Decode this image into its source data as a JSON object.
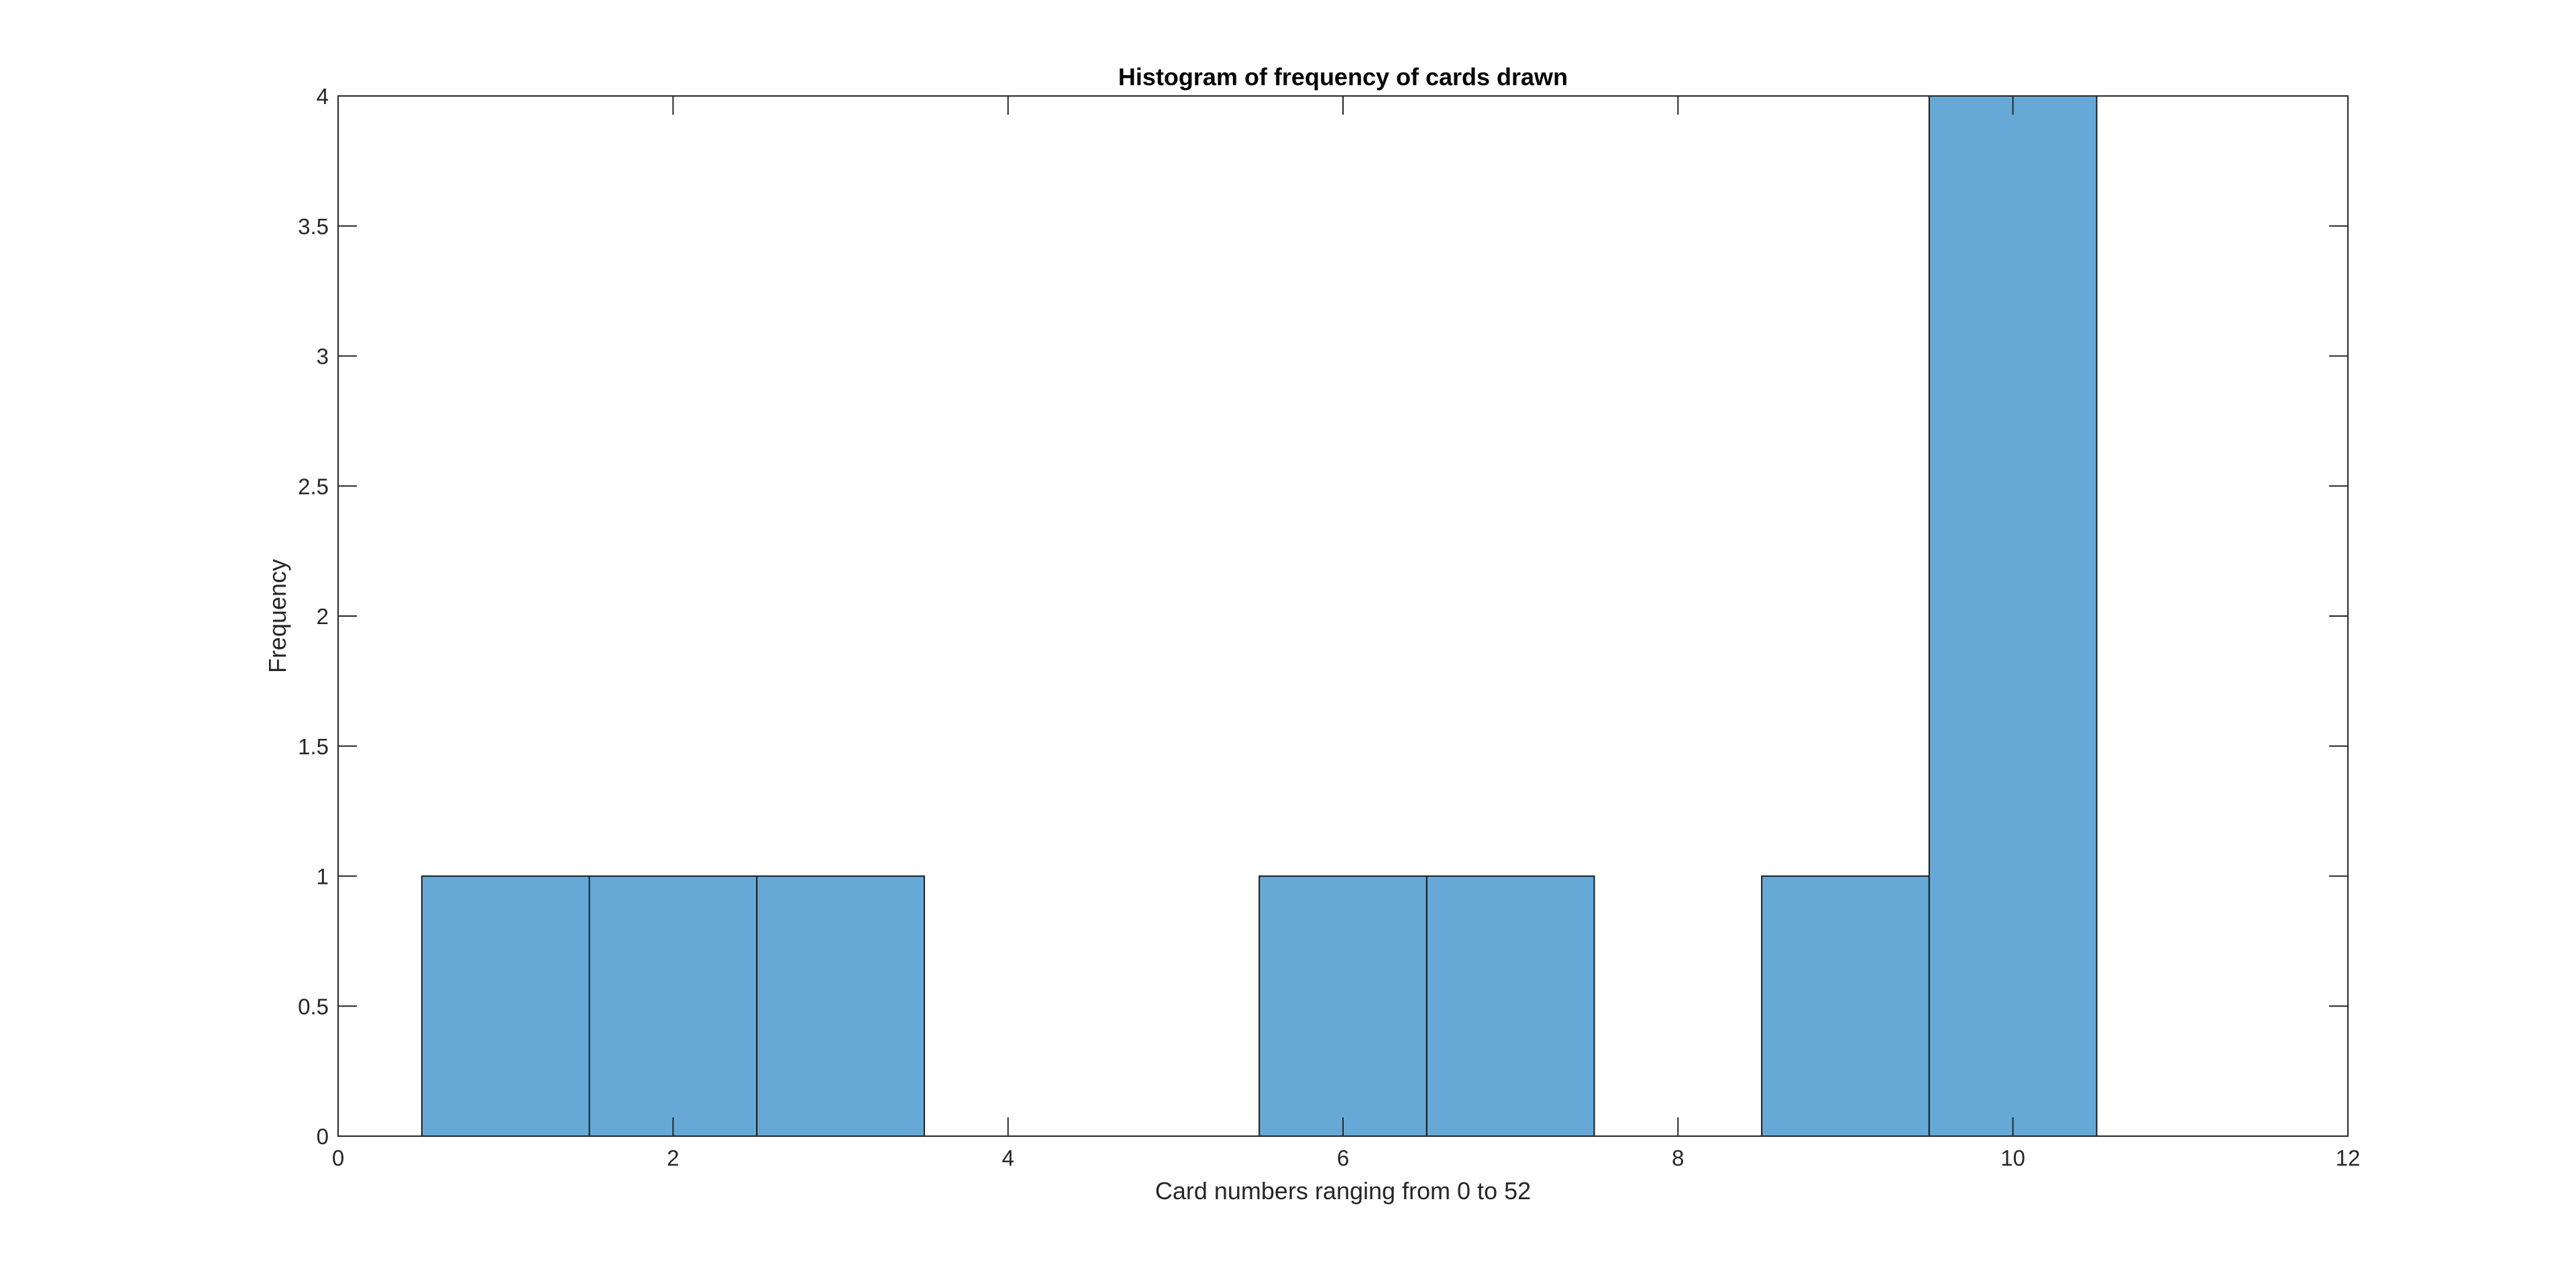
{
  "chart_data": {
    "type": "bar",
    "title": "Histogram of frequency of cards drawn",
    "xlabel": "Card numbers ranging from 0 to 52",
    "ylabel": "Frequency",
    "xlim": [
      0,
      12
    ],
    "ylim": [
      0,
      4
    ],
    "x_ticks": [
      0,
      2,
      4,
      6,
      8,
      10,
      12
    ],
    "x_tick_labels": [
      "0",
      "2",
      "4",
      "6",
      "8",
      "10",
      "12"
    ],
    "y_ticks": [
      0,
      0.5,
      1,
      1.5,
      2,
      2.5,
      3,
      3.5,
      4
    ],
    "y_tick_labels": [
      "0",
      "0.5",
      "1",
      "1.5",
      "2",
      "2.5",
      "3",
      "3.5",
      "4"
    ],
    "bin_width": 1,
    "bins": [
      {
        "center": 1,
        "value": 1
      },
      {
        "center": 2,
        "value": 1
      },
      {
        "center": 3,
        "value": 1
      },
      {
        "center": 6,
        "value": 1
      },
      {
        "center": 7,
        "value": 1
      },
      {
        "center": 9,
        "value": 1
      },
      {
        "center": 10,
        "value": 4
      }
    ],
    "grid": false,
    "colors": {
      "bar_fill": "#66a9d7",
      "bar_edge": "#1a1a1a",
      "axes": "#262626"
    }
  }
}
